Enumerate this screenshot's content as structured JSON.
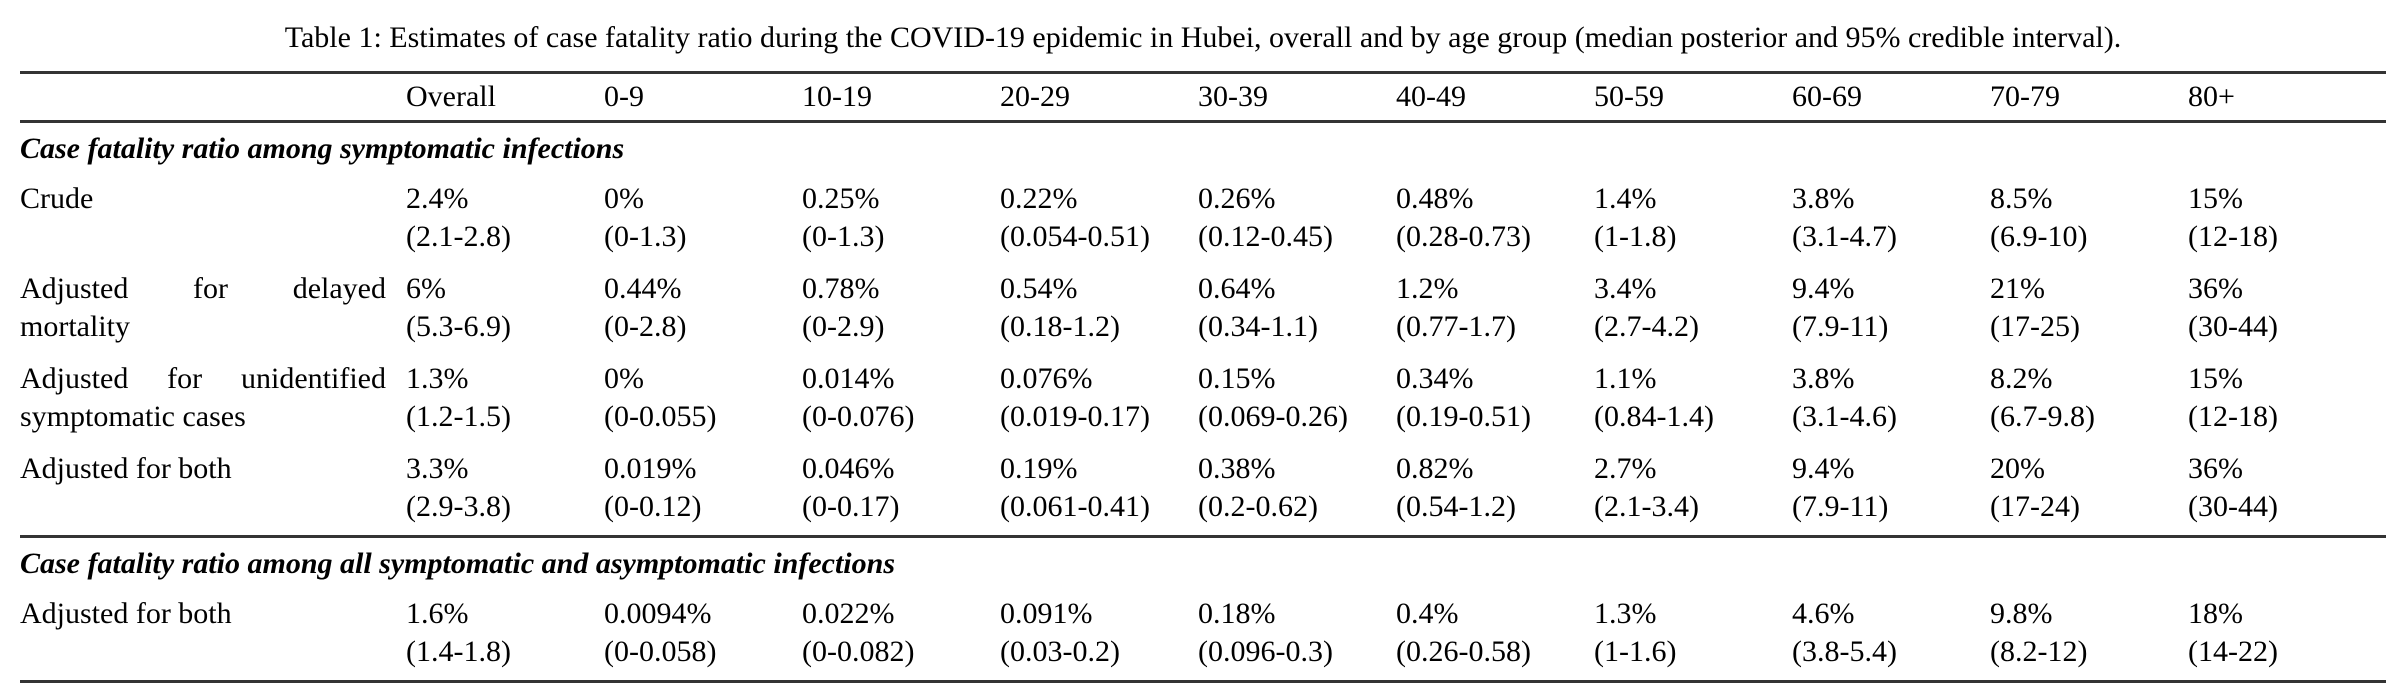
{
  "page": {
    "background": "#ffffff",
    "text_color": "#000000",
    "rule_color": "#343434"
  },
  "caption": "Table 1: Estimates of case fatality ratio during the COVID-19 epidemic in Hubei, overall and by age group (median posterior and 95% credible interval).",
  "table": {
    "column_headers": [
      "Overall",
      "0-9",
      "10-19",
      "20-29",
      "30-39",
      "40-49",
      "50-59",
      "60-69",
      "70-79",
      "80+"
    ],
    "sections": [
      {
        "header": "Case fatality ratio among symptomatic infections",
        "rows": [
          {
            "label": "Crude",
            "cells": [
              {
                "estimate": "2.4%",
                "ci": "(2.1-2.8)"
              },
              {
                "estimate": "0%",
                "ci": "(0-1.3)"
              },
              {
                "estimate": "0.25%",
                "ci": "(0-1.3)"
              },
              {
                "estimate": "0.22%",
                "ci": "(0.054-0.51)"
              },
              {
                "estimate": "0.26%",
                "ci": "(0.12-0.45)"
              },
              {
                "estimate": "0.48%",
                "ci": "(0.28-0.73)"
              },
              {
                "estimate": "1.4%",
                "ci": "(1-1.8)"
              },
              {
                "estimate": "3.8%",
                "ci": "(3.1-4.7)"
              },
              {
                "estimate": "8.5%",
                "ci": "(6.9-10)"
              },
              {
                "estimate": "15%",
                "ci": "(12-18)"
              }
            ]
          },
          {
            "label": "Adjusted for delayed mortality",
            "cells": [
              {
                "estimate": "6%",
                "ci": "(5.3-6.9)"
              },
              {
                "estimate": "0.44%",
                "ci": "(0-2.8)"
              },
              {
                "estimate": "0.78%",
                "ci": "(0-2.9)"
              },
              {
                "estimate": "0.54%",
                "ci": "(0.18-1.2)"
              },
              {
                "estimate": "0.64%",
                "ci": "(0.34-1.1)"
              },
              {
                "estimate": "1.2%",
                "ci": "(0.77-1.7)"
              },
              {
                "estimate": "3.4%",
                "ci": "(2.7-4.2)"
              },
              {
                "estimate": "9.4%",
                "ci": "(7.9-11)"
              },
              {
                "estimate": "21%",
                "ci": "(17-25)"
              },
              {
                "estimate": "36%",
                "ci": "(30-44)"
              }
            ]
          },
          {
            "label": "Adjusted for unidentified symptomatic cases",
            "cells": [
              {
                "estimate": "1.3%",
                "ci": "(1.2-1.5)"
              },
              {
                "estimate": "0%",
                "ci": "(0-0.055)"
              },
              {
                "estimate": "0.014%",
                "ci": "(0-0.076)"
              },
              {
                "estimate": "0.076%",
                "ci": "(0.019-0.17)"
              },
              {
                "estimate": "0.15%",
                "ci": "(0.069-0.26)"
              },
              {
                "estimate": "0.34%",
                "ci": "(0.19-0.51)"
              },
              {
                "estimate": "1.1%",
                "ci": "(0.84-1.4)"
              },
              {
                "estimate": "3.8%",
                "ci": "(3.1-4.6)"
              },
              {
                "estimate": "8.2%",
                "ci": "(6.7-9.8)"
              },
              {
                "estimate": "15%",
                "ci": "(12-18)"
              }
            ]
          },
          {
            "label": "Adjusted for both",
            "cells": [
              {
                "estimate": "3.3%",
                "ci": "(2.9-3.8)"
              },
              {
                "estimate": "0.019%",
                "ci": "(0-0.12)"
              },
              {
                "estimate": "0.046%",
                "ci": "(0-0.17)"
              },
              {
                "estimate": "0.19%",
                "ci": "(0.061-0.41)"
              },
              {
                "estimate": "0.38%",
                "ci": "(0.2-0.62)"
              },
              {
                "estimate": "0.82%",
                "ci": "(0.54-1.2)"
              },
              {
                "estimate": "2.7%",
                "ci": "(2.1-3.4)"
              },
              {
                "estimate": "9.4%",
                "ci": "(7.9-11)"
              },
              {
                "estimate": "20%",
                "ci": "(17-24)"
              },
              {
                "estimate": "36%",
                "ci": "(30-44)"
              }
            ]
          }
        ]
      },
      {
        "header": "Case fatality ratio among all symptomatic and asymptomatic infections",
        "rows": [
          {
            "label": "Adjusted for both",
            "cells": [
              {
                "estimate": "1.6%",
                "ci": "(1.4-1.8)"
              },
              {
                "estimate": "0.0094%",
                "ci": "(0-0.058)"
              },
              {
                "estimate": "0.022%",
                "ci": "(0-0.082)"
              },
              {
                "estimate": "0.091%",
                "ci": "(0.03-0.2)"
              },
              {
                "estimate": "0.18%",
                "ci": "(0.096-0.3)"
              },
              {
                "estimate": "0.4%",
                "ci": "(0.26-0.58)"
              },
              {
                "estimate": "1.3%",
                "ci": "(1-1.6)"
              },
              {
                "estimate": "4.6%",
                "ci": "(3.8-5.4)"
              },
              {
                "estimate": "9.8%",
                "ci": "(8.2-12)"
              },
              {
                "estimate": "18%",
                "ci": "(14-22)"
              }
            ]
          }
        ]
      }
    ]
  }
}
